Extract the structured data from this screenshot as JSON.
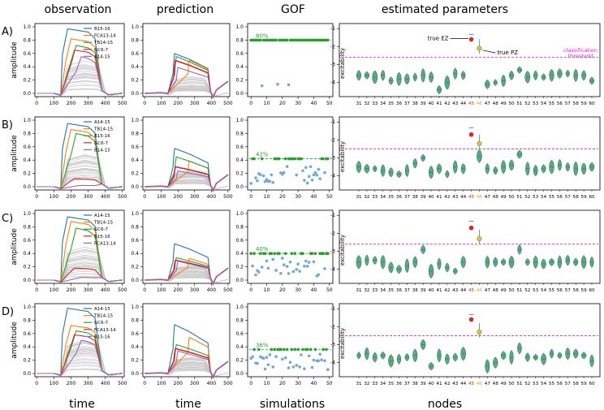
{
  "column_titles": [
    "observation",
    "prediction",
    "GOF",
    "estimated parameters"
  ],
  "bottom_labels": [
    "time",
    "time",
    "simulations",
    "nodes"
  ],
  "rows": [
    {
      "label": "A)",
      "legend": [
        "B15-16",
        "FCA13-14",
        "TB14-15",
        "GC6-7",
        "A14-15"
      ],
      "gof_pct": "80%",
      "gof_level": 0.8
    },
    {
      "label": "B)",
      "legend": [
        "A14-15",
        "TB14-15",
        "B15-16",
        "GC6-7",
        "B14-15"
      ],
      "gof_pct": "42%",
      "gof_level": 0.42
    },
    {
      "label": "C)",
      "legend": [
        "A14-15",
        "TB14-15",
        "GC6-7",
        "B15-16",
        "FCA13-14"
      ],
      "gof_pct": "40%",
      "gof_level": 0.4
    },
    {
      "label": "D)",
      "legend": [
        "A14-15",
        "TB14-15",
        "GC6-7",
        "FCA13-14",
        "B15-16"
      ],
      "gof_pct": "36%",
      "gof_level": 0.36
    }
  ],
  "annotations": {
    "true_ez": "true EZ",
    "true_pz": "true PZ",
    "classification": "classification",
    "threshold": "threshold"
  },
  "colors": {
    "purple": "#9467bd",
    "green": "#2ca02c",
    "blue": "#1f77b4",
    "red": "#d62728",
    "orange": "#ff7f0e",
    "grey": "#c8c8c8",
    "violin": "#5aaa7c",
    "scatter": "#6fa8dc",
    "threshold": "#dd22dd"
  },
  "chart_data": {
    "type": "figure-grid",
    "x_time": {
      "range": [
        0,
        500
      ],
      "ticks": [
        0,
        100,
        200,
        300,
        400,
        500
      ],
      "xlabel": "time"
    },
    "y_amplitude": {
      "range": [
        0,
        1.0
      ],
      "ticks": [
        "0.0",
        "0.2",
        "0.4",
        "0.6",
        "0.8",
        "1.0"
      ],
      "ylabel": "amplitude"
    },
    "gof": {
      "x_range": [
        0,
        50
      ],
      "x_ticks": [
        0,
        10,
        20,
        30,
        40,
        50
      ],
      "y_range": [
        0,
        1.0
      ],
      "y_ticks": [
        "0.0",
        "0.2",
        "0.4",
        "0.6",
        "0.8",
        "1.0"
      ],
      "xlabel": "simulations"
    },
    "params": {
      "nodes": [
        31,
        32,
        33,
        34,
        35,
        36,
        37,
        38,
        39,
        40,
        41,
        42,
        43,
        44,
        45,
        46,
        47,
        48,
        49,
        50,
        51,
        52,
        53,
        54,
        55,
        56,
        57,
        58,
        59,
        60
      ],
      "y_range": [
        -4.6,
        -0.9
      ],
      "y_ticks": [
        "-1",
        "-2",
        "-3",
        "-4"
      ],
      "ylabel": "excitability",
      "xlabel": "nodes",
      "ez_node": 45,
      "pz_node": 46
    },
    "panels": [
      {
        "threshold": -2.6,
        "ez": -1.6,
        "pz": -2.1,
        "medians": [
          -3.6,
          -3.6,
          -3.7,
          -3.6,
          -3.9,
          -3.8,
          -3.8,
          -3.7,
          -3.6,
          -3.7,
          -4.4,
          -4.0,
          -3.5,
          -3.6,
          null,
          null,
          -4.1,
          -4.0,
          -3.9,
          -3.6,
          -3.3,
          -3.7,
          -3.6,
          -3.7,
          -3.6,
          -3.5,
          -3.5,
          -3.6,
          -3.6,
          -3.9
        ],
        "amps": [
          {
            "p": 0.97,
            "e": 0.8
          },
          {
            "p": 0.82,
            "e": 0.78
          },
          {
            "p": 0.72,
            "e": 0.74
          },
          {
            "p": 0.65,
            "e": 0.66
          },
          {
            "p": 0.55,
            "e": 0.52
          }
        ]
      },
      {
        "threshold": -2.5,
        "ez": -1.7,
        "pz": -2.2,
        "medians": [
          -3.5,
          -3.6,
          -3.6,
          -3.7,
          -3.8,
          -3.9,
          -3.7,
          -3.3,
          -3.0,
          -3.8,
          -3.6,
          -3.9,
          -3.5,
          -3.6,
          null,
          -2.9,
          -3.6,
          -3.7,
          -3.5,
          -3.4,
          -2.8,
          -3.6,
          -3.7,
          -3.6,
          -3.5,
          -3.4,
          -3.5,
          -3.6,
          -3.6,
          -3.5
        ],
        "amps": [
          {
            "p": 0.95,
            "e": 0.77
          },
          {
            "p": 0.86,
            "e": 0.6
          },
          {
            "p": 0.8,
            "e": 0.6
          },
          {
            "p": 0.12,
            "e": 0.4
          },
          {
            "p": 0.02,
            "e": 0.32
          }
        ]
      },
      {
        "threshold": -2.6,
        "ez": -1.7,
        "pz": -2.3,
        "medians": [
          -3.6,
          -3.5,
          -3.5,
          -3.6,
          -3.9,
          -4.0,
          -3.8,
          -3.6,
          -2.9,
          -4.1,
          -3.7,
          -3.9,
          -4.1,
          -3.6,
          null,
          null,
          -3.6,
          -3.6,
          -3.6,
          -3.6,
          -2.9,
          -3.6,
          -3.6,
          -3.7,
          -3.6,
          -3.6,
          -3.5,
          -3.6,
          -3.6,
          -3.6
        ],
        "amps": [
          {
            "p": 0.95,
            "e": 0.73
          },
          {
            "p": 0.88,
            "e": 0.51
          },
          {
            "p": 0.78,
            "e": 0.45
          },
          {
            "p": 0.18,
            "e": 0.4
          },
          {
            "p": 0.04,
            "e": 0.38
          }
        ]
      },
      {
        "threshold": -2.5,
        "ez": -1.6,
        "pz": -2.3,
        "medians": [
          -3.6,
          -3.5,
          -3.7,
          -3.6,
          -3.9,
          -3.8,
          -3.7,
          -3.6,
          -3.0,
          -4.2,
          -3.6,
          -3.8,
          -3.7,
          -3.5,
          null,
          null,
          -4.2,
          -4.0,
          -3.6,
          -3.7,
          -3.2,
          -3.7,
          -3.7,
          -3.8,
          -3.5,
          -3.6,
          -3.5,
          -3.5,
          -3.6,
          -3.9
        ],
        "amps": [
          {
            "p": 0.98,
            "e": 0.98
          },
          {
            "p": 0.72,
            "e": 0.85
          },
          {
            "p": 0.64,
            "e": 0.58
          },
          {
            "p": 0.58,
            "e": 0.5
          },
          {
            "p": 0.5,
            "e": 0.45
          }
        ]
      }
    ]
  }
}
